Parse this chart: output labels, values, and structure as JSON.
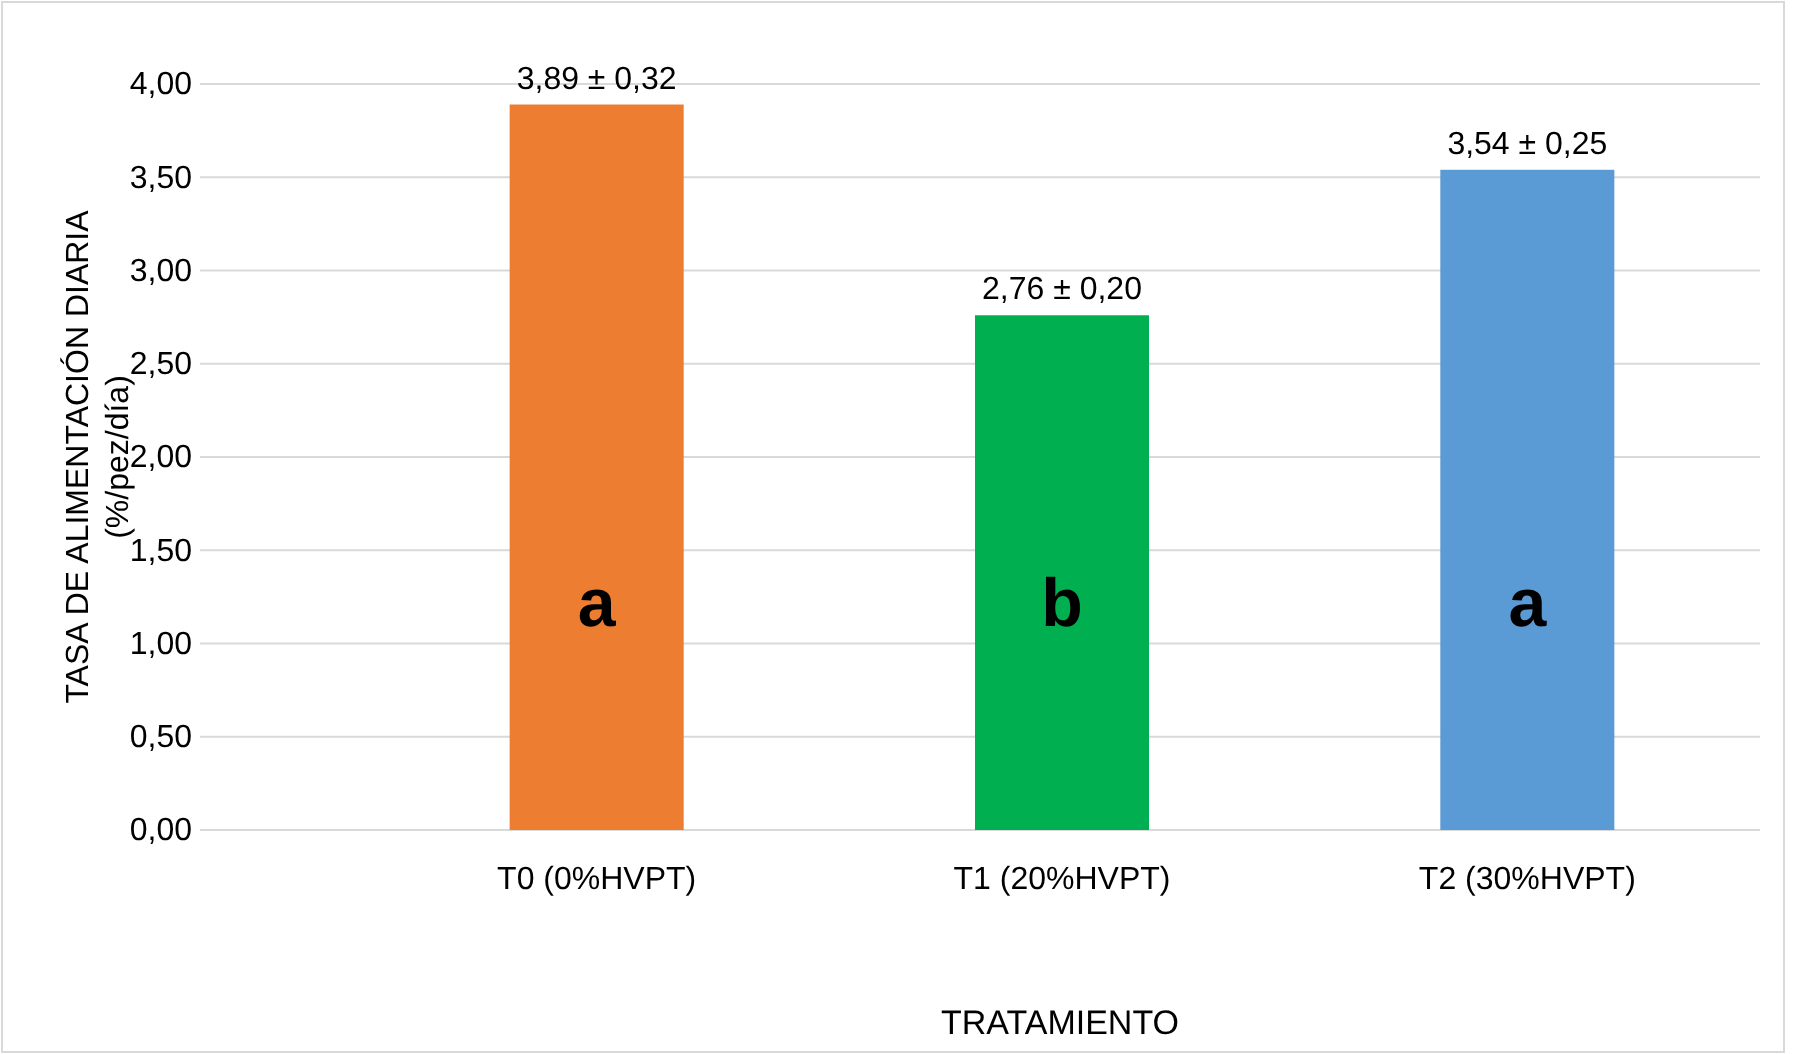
{
  "chart_data": {
    "type": "bar",
    "xlabel": "TRATAMIENTO",
    "ylabel": "TASA DE ALIMENTACIÓN DIARIA\n(%/pez/día)",
    "categories": [
      "T0 (0%HVPT)",
      "T1 (20%HVPT)",
      "T2 (30%HVPT)"
    ],
    "values": [
      3.89,
      2.76,
      3.54
    ],
    "colors": [
      "#ed7d31",
      "#00b050",
      "#5b9bd5"
    ],
    "value_labels": [
      "3,89 ± 0,32",
      "2,76 ± 0,20",
      "3,54 ± 0,25"
    ],
    "ylim": [
      0,
      4
    ],
    "yticks": [
      {
        "value": 0,
        "label": "0,00"
      },
      {
        "value": 0.5,
        "label": "0,50"
      },
      {
        "value": 1,
        "label": "1,00"
      },
      {
        "value": 1.5,
        "label": "1,50"
      },
      {
        "value": 2,
        "label": "2,00"
      },
      {
        "value": 2.5,
        "label": "2,50"
      },
      {
        "value": 3,
        "label": "3,00"
      },
      {
        "value": 3.5,
        "label": "3,50"
      },
      {
        "value": 4,
        "label": "4,00"
      }
    ],
    "grid": "y",
    "annotations": [
      "a",
      "b",
      "a"
    ]
  }
}
